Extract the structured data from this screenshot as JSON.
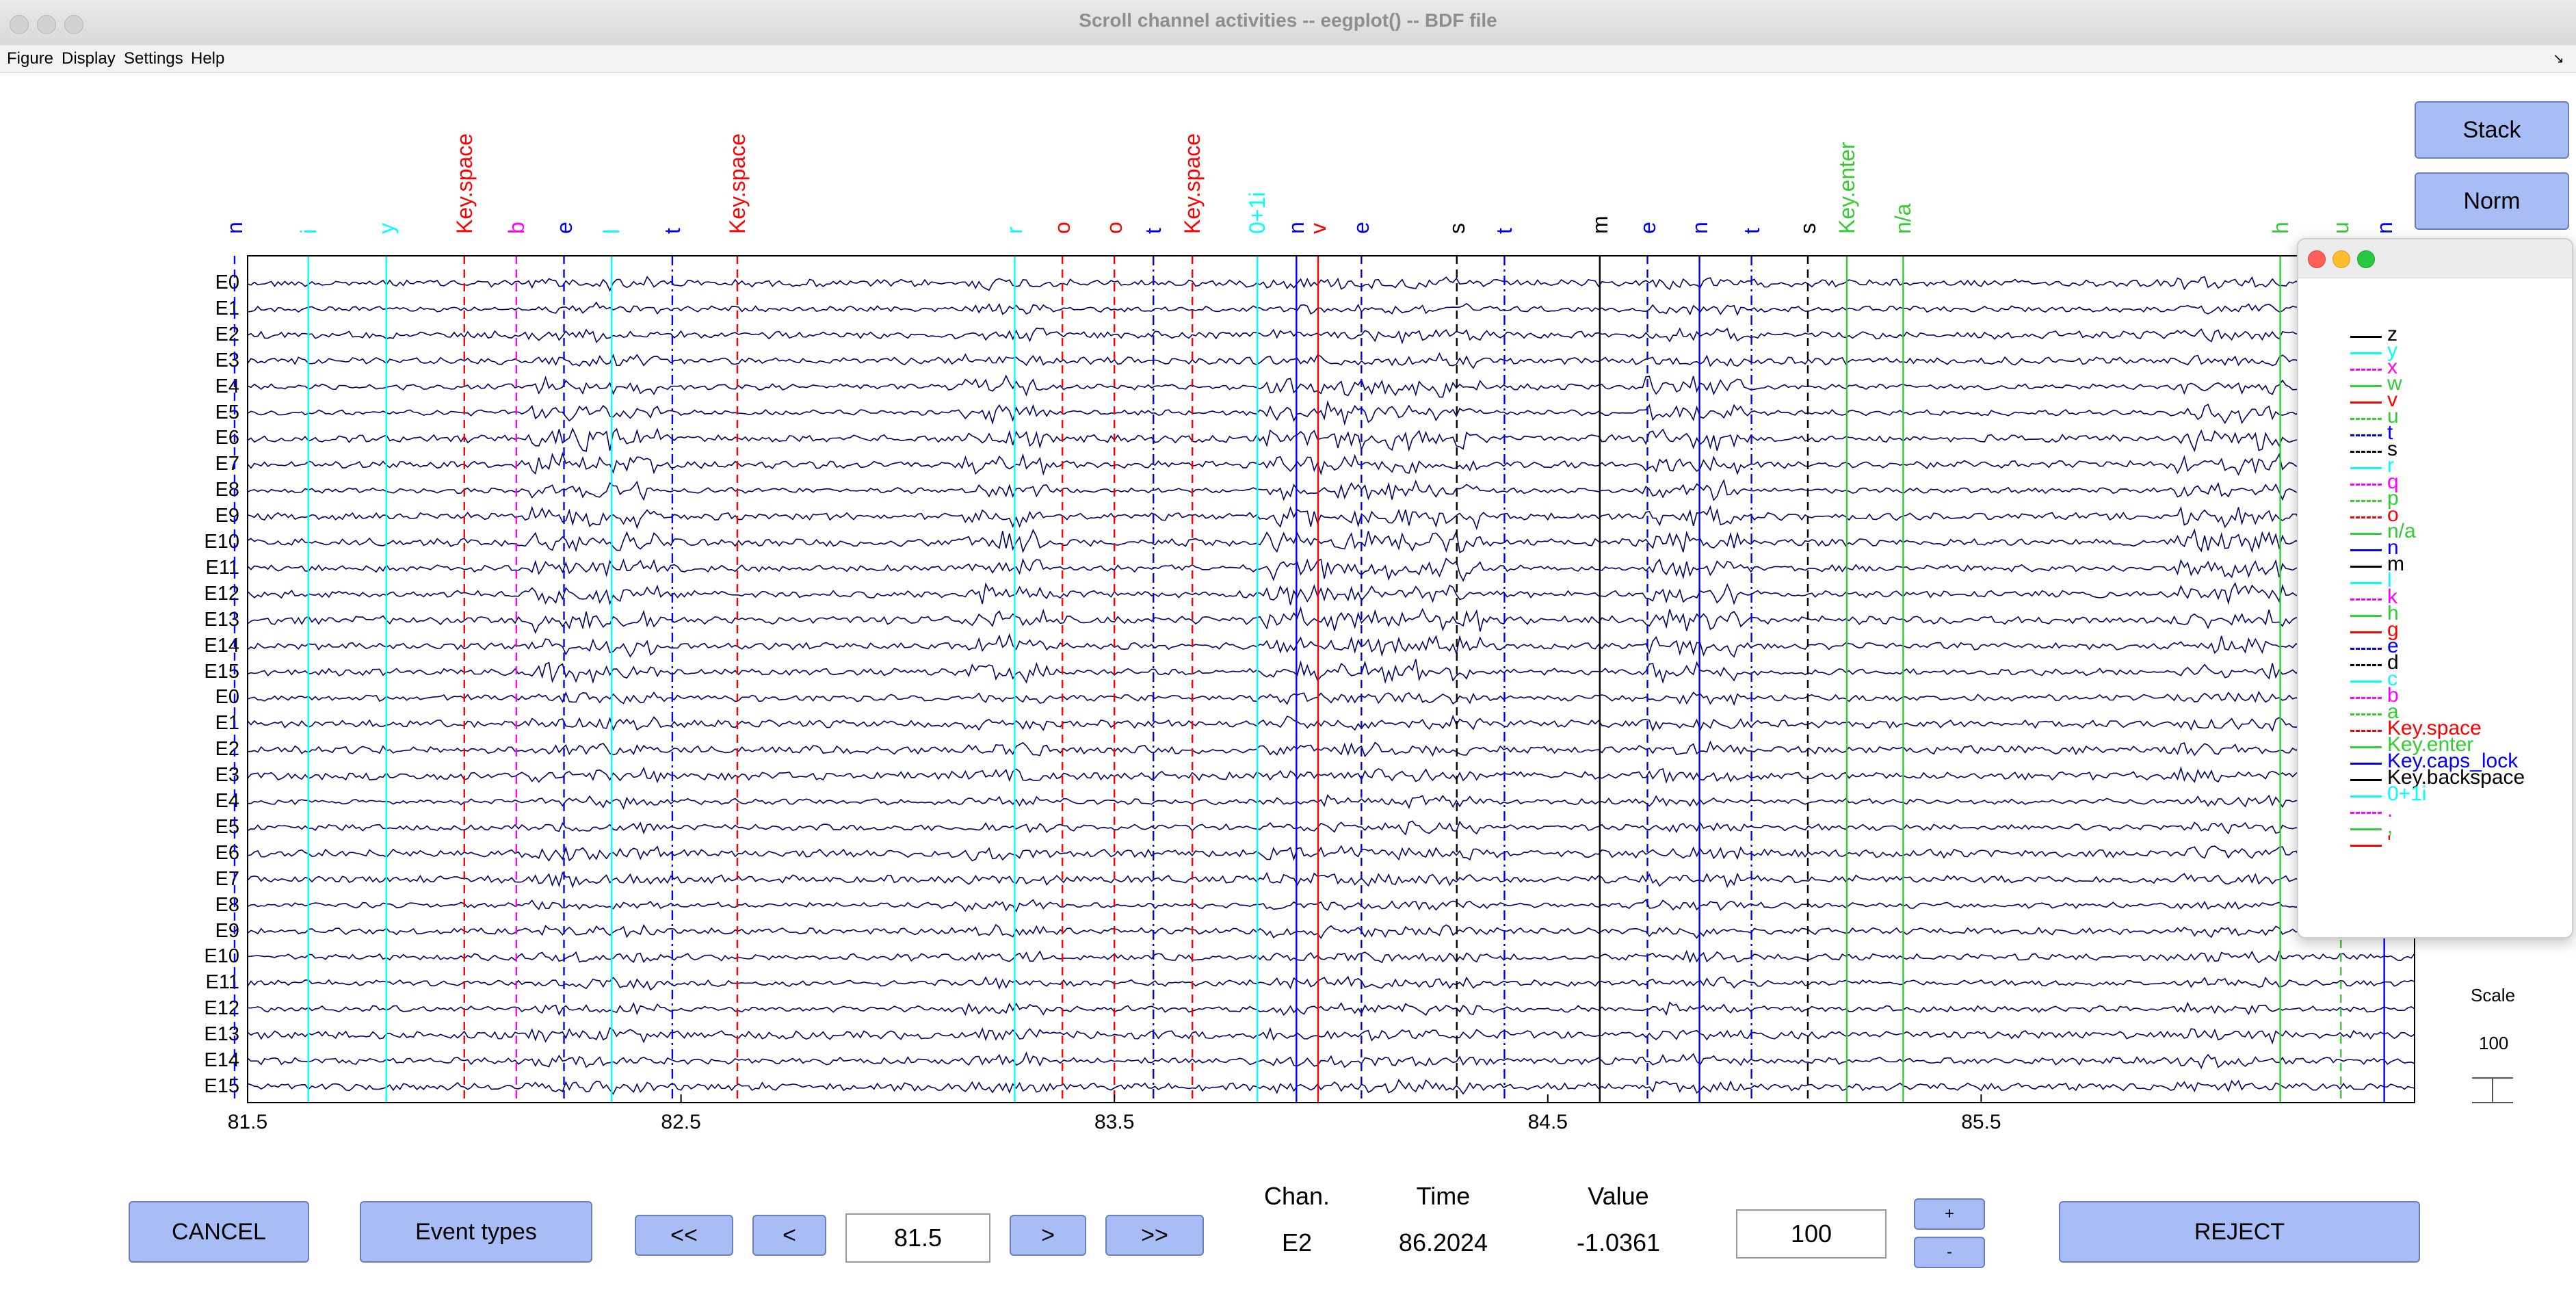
{
  "window": {
    "title": "Scroll channel activities -- eegplot() -- BDF file"
  },
  "menu": [
    "Figure",
    "Display",
    "Settings",
    "Help"
  ],
  "side_buttons": {
    "stack": "Stack",
    "norm": "Norm"
  },
  "channels": [
    "E0",
    "E1",
    "E2",
    "E3",
    "E4",
    "E5",
    "E6",
    "E7",
    "E8",
    "E9",
    "E10",
    "E11",
    "E12",
    "E13",
    "E14",
    "E15",
    "E0",
    "E1",
    "E2",
    "E3",
    "E4",
    "E5",
    "E6",
    "E7",
    "E8",
    "E9",
    "E10",
    "E11",
    "E12",
    "E13",
    "E14",
    "E15"
  ],
  "x_axis": {
    "min": 81.5,
    "max": 86.5,
    "ticks": [
      "81.5",
      "82.5",
      "83.5",
      "84.5",
      "85.5"
    ]
  },
  "events": [
    {
      "label": "n",
      "t": 81.47,
      "color": "#0000ff",
      "dash": "dash"
    },
    {
      "label": "i",
      "t": 81.64,
      "color": "#00ffff",
      "dash": "solid"
    },
    {
      "label": "y",
      "t": 81.82,
      "color": "#00ffff",
      "dash": "solid"
    },
    {
      "label": "Key.space",
      "t": 82.0,
      "color": "#ff0000",
      "dash": "dash"
    },
    {
      "label": "b",
      "t": 82.12,
      "color": "#ff00ff",
      "dash": "dash"
    },
    {
      "label": "e",
      "t": 82.23,
      "color": "#0000ff",
      "dash": "dash"
    },
    {
      "label": "l",
      "t": 82.34,
      "color": "#00ffff",
      "dash": "solid"
    },
    {
      "label": "t",
      "t": 82.48,
      "color": "#0000ff",
      "dash": "dashdot"
    },
    {
      "label": "Key.space",
      "t": 82.63,
      "color": "#ff0000",
      "dash": "dash"
    },
    {
      "label": "r",
      "t": 83.27,
      "color": "#00ffff",
      "dash": "solid"
    },
    {
      "label": "o",
      "t": 83.38,
      "color": "#ff0000",
      "dash": "dash"
    },
    {
      "label": "o",
      "t": 83.5,
      "color": "#ff0000",
      "dash": "dash"
    },
    {
      "label": "t",
      "t": 83.59,
      "color": "#0000ff",
      "dash": "dashdot"
    },
    {
      "label": "Key.space",
      "t": 83.68,
      "color": "#ff0000",
      "dash": "dash"
    },
    {
      "label": "0+1i",
      "t": 83.83,
      "color": "#00ffff",
      "dash": "solid"
    },
    {
      "label": "n",
      "t": 83.92,
      "color": "#0000ff",
      "dash": "solid"
    },
    {
      "label": "v",
      "t": 83.97,
      "color": "#ff0000",
      "dash": "solid"
    },
    {
      "label": "e",
      "t": 84.07,
      "color": "#0000ff",
      "dash": "dash"
    },
    {
      "label": "s",
      "t": 84.29,
      "color": "#000000",
      "dash": "dash"
    },
    {
      "label": "t",
      "t": 84.4,
      "color": "#0000ff",
      "dash": "dashdot"
    },
    {
      "label": "m",
      "t": 84.62,
      "color": "#000000",
      "dash": "solid"
    },
    {
      "label": "e",
      "t": 84.73,
      "color": "#0000ff",
      "dash": "dash"
    },
    {
      "label": "n",
      "t": 84.85,
      "color": "#0000ff",
      "dash": "solid"
    },
    {
      "label": "t",
      "t": 84.97,
      "color": "#0000ff",
      "dash": "dashdot"
    },
    {
      "label": "s",
      "t": 85.1,
      "color": "#000000",
      "dash": "dash"
    },
    {
      "label": "Key.enter",
      "t": 85.19,
      "color": "#33cc33",
      "dash": "solid"
    },
    {
      "label": "n/a",
      "t": 85.32,
      "color": "#33cc33",
      "dash": "solid"
    },
    {
      "label": "h",
      "t": 86.19,
      "color": "#33cc33",
      "dash": "solid"
    },
    {
      "label": "u",
      "t": 86.33,
      "color": "#33cc33",
      "dash": "dash"
    },
    {
      "label": "n",
      "t": 86.43,
      "color": "#0000ff",
      "dash": "solid"
    }
  ],
  "legend": {
    "items": [
      {
        "label": "z",
        "color": "#000000",
        "dash": "solid"
      },
      {
        "label": "y",
        "color": "#00ffff",
        "dash": "solid"
      },
      {
        "label": "x",
        "color": "#ff00ff",
        "dash": "dash"
      },
      {
        "label": "w",
        "color": "#33cc33",
        "dash": "solid"
      },
      {
        "label": "v",
        "color": "#ff0000",
        "dash": "solid"
      },
      {
        "label": "u",
        "color": "#33cc33",
        "dash": "dash"
      },
      {
        "label": "t",
        "color": "#0000ff",
        "dash": "dashdot"
      },
      {
        "label": "s",
        "color": "#000000",
        "dash": "dash"
      },
      {
        "label": "r",
        "color": "#00ffff",
        "dash": "solid"
      },
      {
        "label": "q",
        "color": "#ff00ff",
        "dash": "dash"
      },
      {
        "label": "p",
        "color": "#33cc33",
        "dash": "dash"
      },
      {
        "label": "o",
        "color": "#ff0000",
        "dash": "dash"
      },
      {
        "label": "n/a",
        "color": "#33cc33",
        "dash": "solid"
      },
      {
        "label": "n",
        "color": "#0000ff",
        "dash": "solid"
      },
      {
        "label": "m",
        "color": "#000000",
        "dash": "solid"
      },
      {
        "label": "l",
        "color": "#00ffff",
        "dash": "solid"
      },
      {
        "label": "k",
        "color": "#ff00ff",
        "dash": "dash"
      },
      {
        "label": "h",
        "color": "#33cc33",
        "dash": "solid"
      },
      {
        "label": "g",
        "color": "#ff0000",
        "dash": "solid"
      },
      {
        "label": "e",
        "color": "#0000ff",
        "dash": "dash"
      },
      {
        "label": "d",
        "color": "#000000",
        "dash": "dash"
      },
      {
        "label": "c",
        "color": "#00ffff",
        "dash": "solid"
      },
      {
        "label": "b",
        "color": "#ff00ff",
        "dash": "dash"
      },
      {
        "label": "a",
        "color": "#33cc33",
        "dash": "dash"
      },
      {
        "label": "Key.space",
        "color": "#ff0000",
        "dash": "dash"
      },
      {
        "label": "Key.enter",
        "color": "#33cc33",
        "dash": "solid"
      },
      {
        "label": "Key.caps_lock",
        "color": "#0000ff",
        "dash": "solid"
      },
      {
        "label": "Key.backspace",
        "color": "#000000",
        "dash": "solid"
      },
      {
        "label": "0+1i",
        "color": "#00ffff",
        "dash": "solid"
      },
      {
        "label": ".",
        "color": "#ff00ff",
        "dash": "dash"
      },
      {
        "label": ",",
        "color": "#33cc33",
        "dash": "solid"
      },
      {
        "label": "'",
        "color": "#ff0000",
        "dash": "solid"
      }
    ]
  },
  "scale": {
    "label": "Scale",
    "value": "100"
  },
  "controls": {
    "cancel": "CANCEL",
    "event_types": "Event types",
    "prev_fast": "<<",
    "prev": "<",
    "time_field": "81.5",
    "next": ">",
    "next_fast": ">>",
    "chan_header": "Chan.",
    "chan_value": "E2",
    "time_header": "Time",
    "time_value": "86.2024",
    "value_header": "Value",
    "value_value": "-1.0361",
    "scale_field": "100",
    "plus": "+",
    "minus": "-",
    "reject": "REJECT"
  },
  "colors": {
    "trace": "#000066",
    "button": "#a8bcf6"
  }
}
